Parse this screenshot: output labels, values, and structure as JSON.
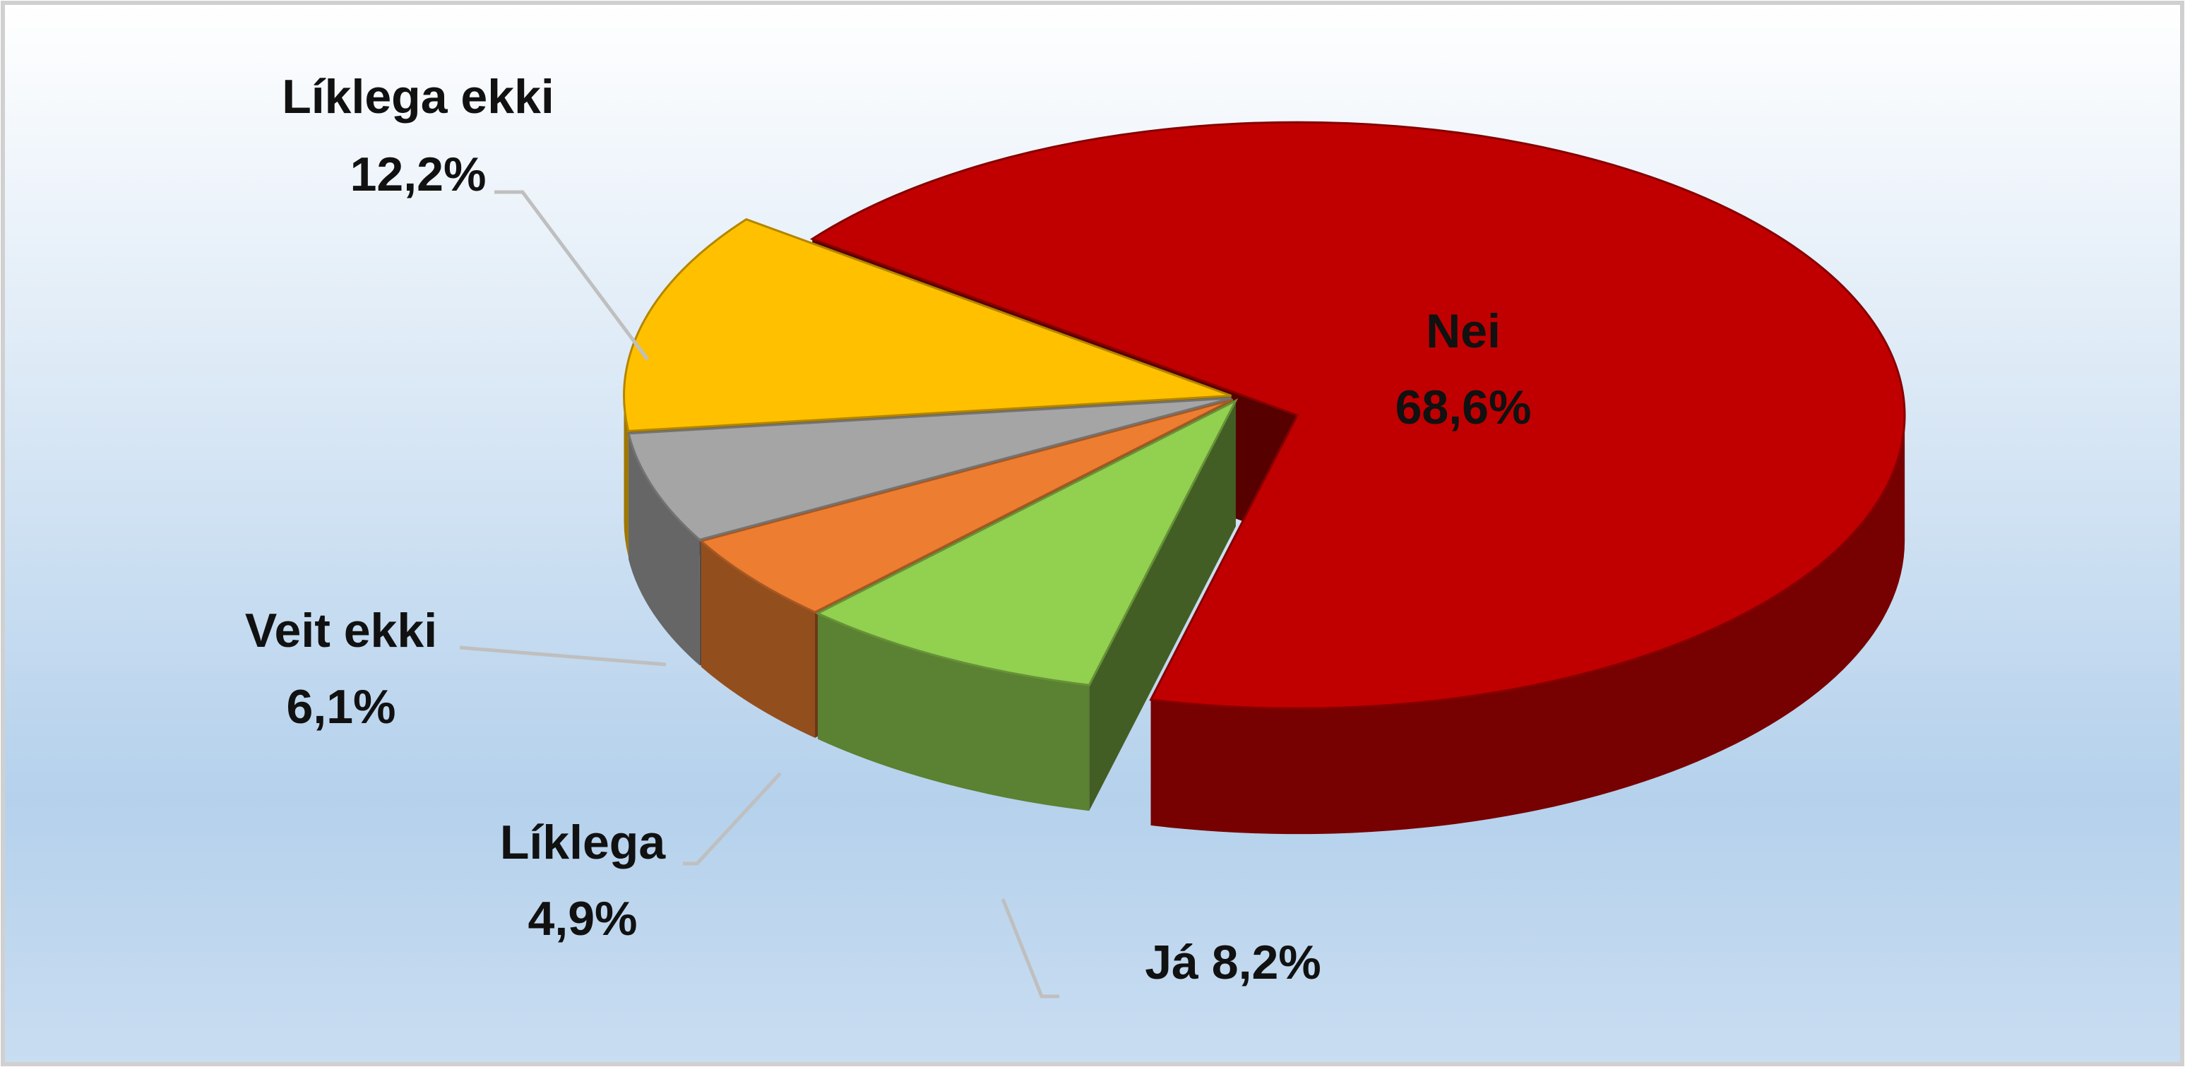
{
  "chart_data": {
    "type": "pie",
    "categories": [
      "Nei",
      "Já",
      "Líklega",
      "Veit ekki",
      "Líklega ekki"
    ],
    "values": [
      68.6,
      8.2,
      4.9,
      6.1,
      12.2
    ],
    "value_labels": [
      "68,6%",
      "8,2%",
      "4,9%",
      "6,1%",
      "12,2%"
    ],
    "colors": [
      "#c00000",
      "#92d050",
      "#ed7d31",
      "#a5a5a5",
      "#ffc000"
    ]
  }
}
